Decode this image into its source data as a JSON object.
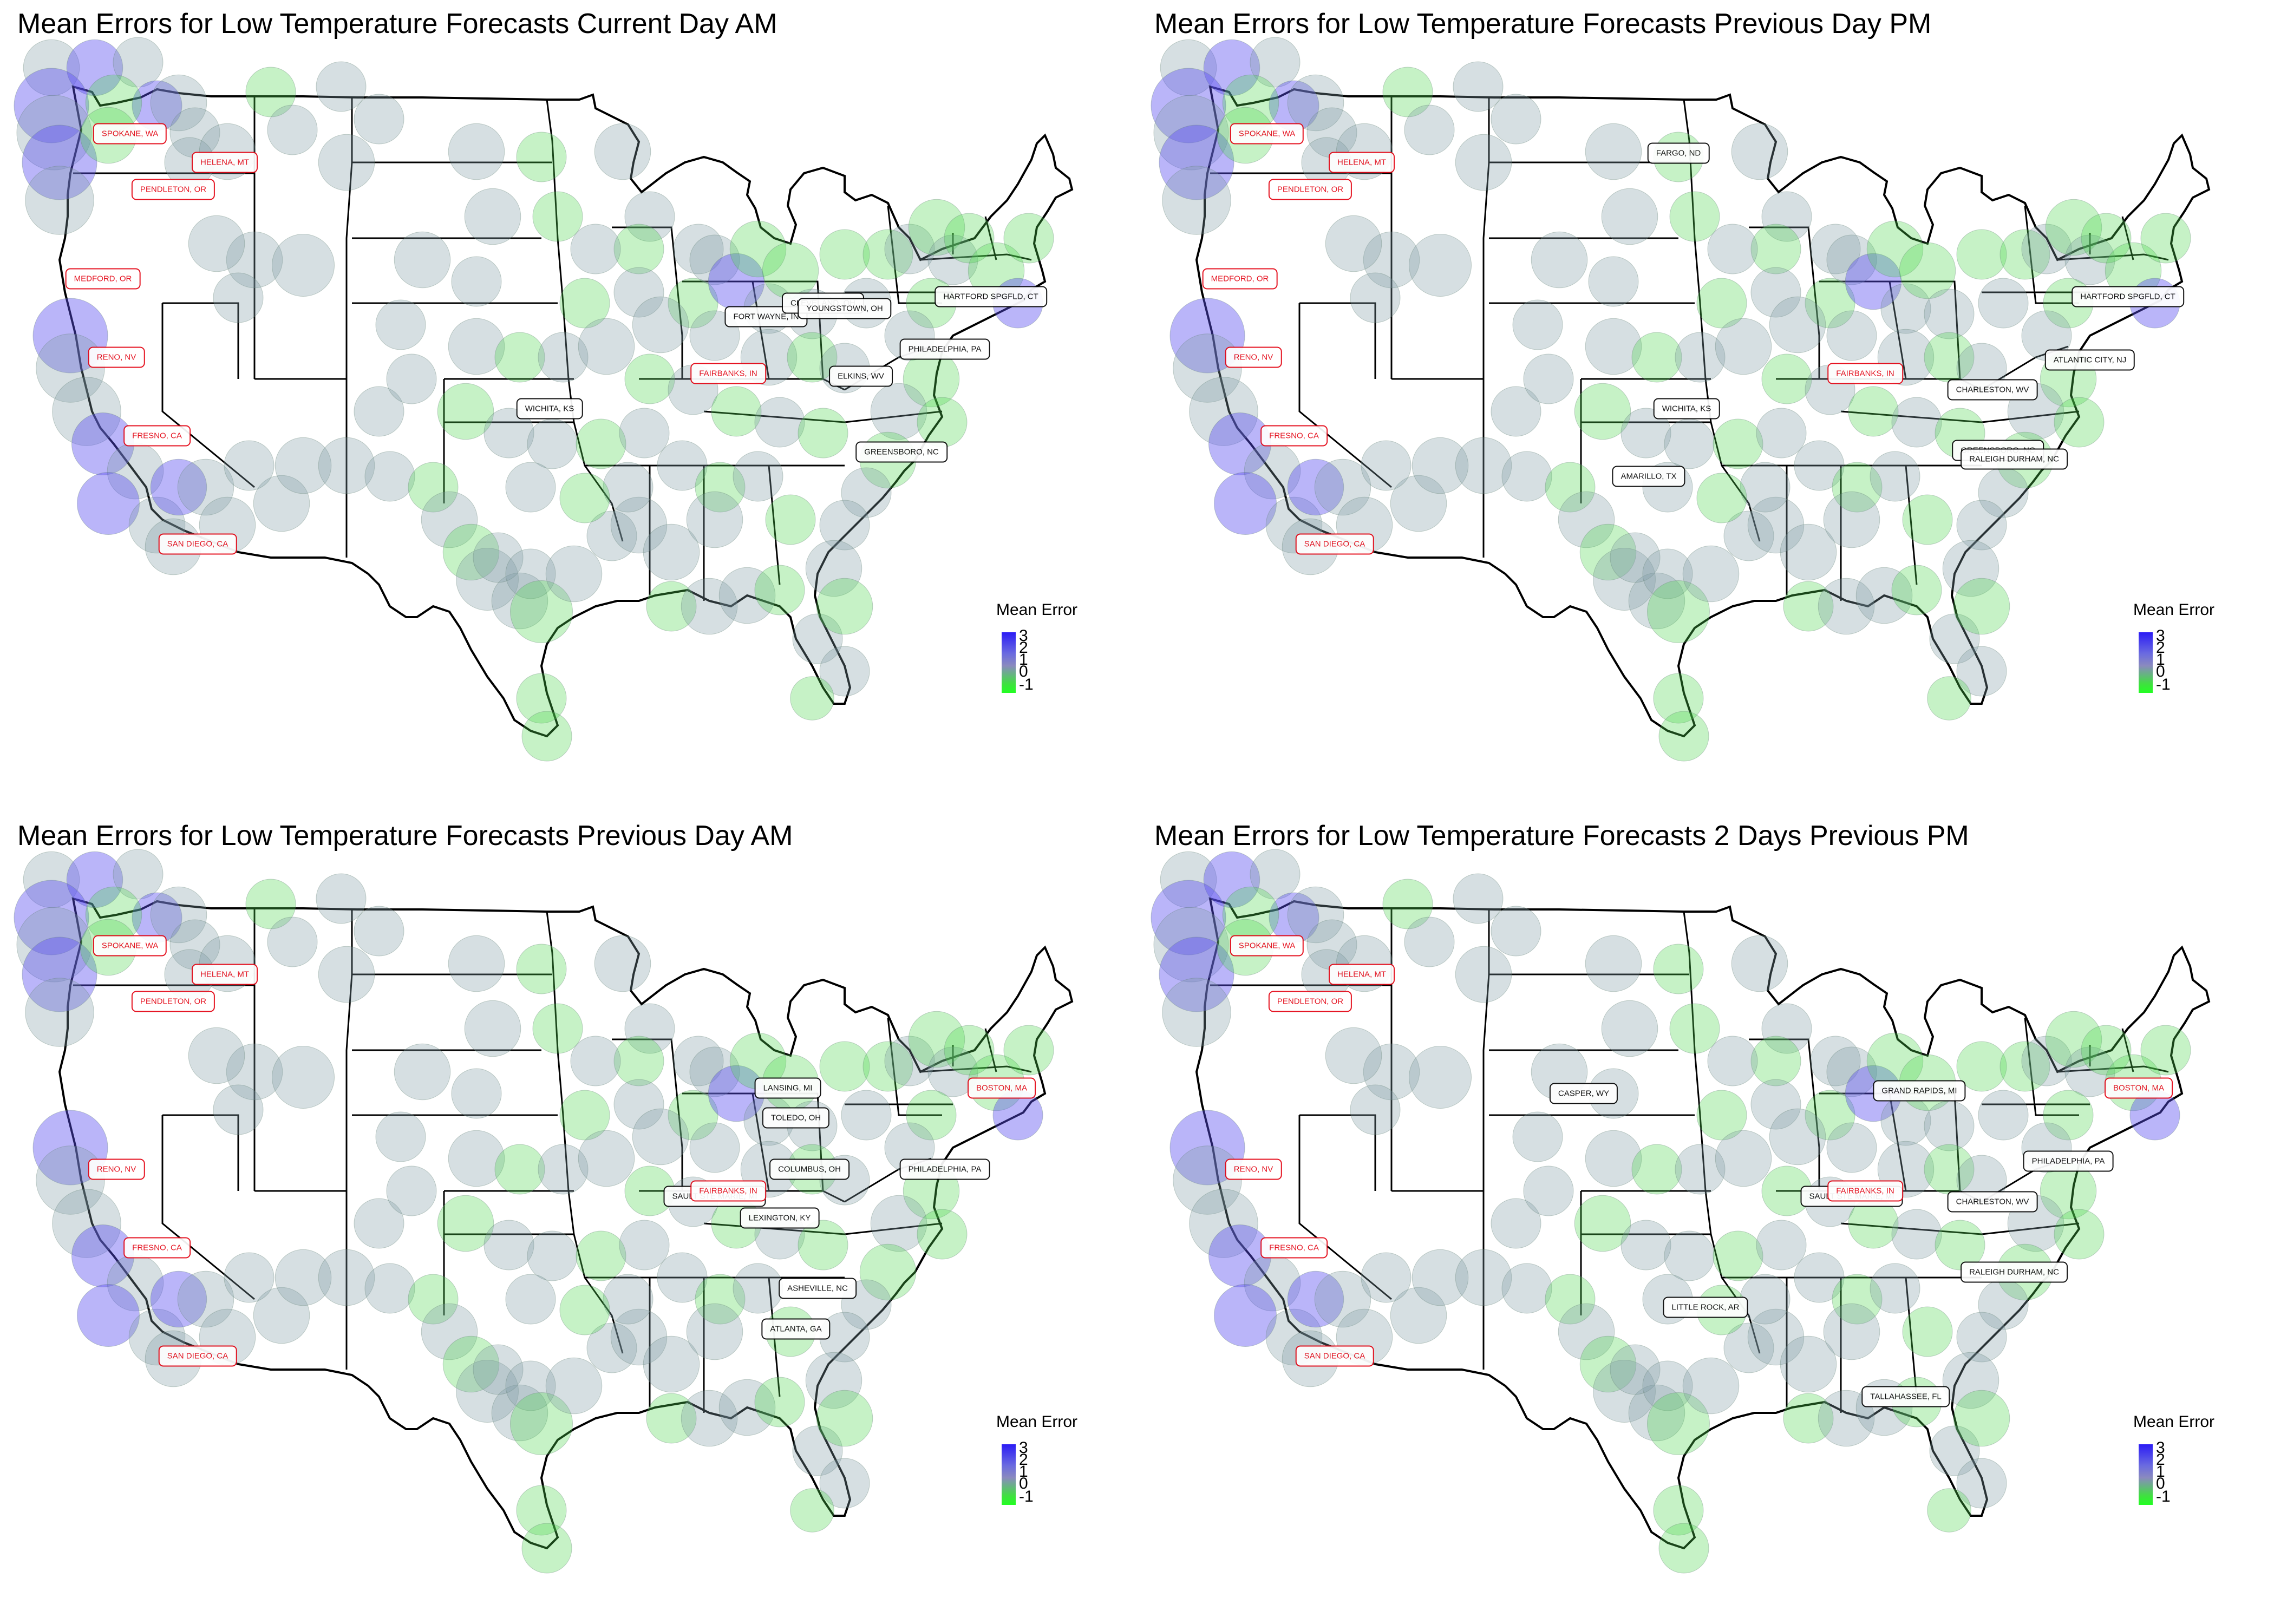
{
  "legend": {
    "title": "Mean Error",
    "ticks": [
      "3",
      "2",
      "1",
      "0",
      "-1"
    ]
  },
  "colors": {
    "high_error": "#2b1cf5",
    "mid_error": "#8a8abf",
    "low_error": "#22ff22"
  },
  "panels": [
    {
      "title": "Mean Errors for Low Temperature Forecasts Current Day AM",
      "labels": [
        {
          "text": "SPOKANE, WA",
          "color": "red"
        },
        {
          "text": "HELENA, MT",
          "color": "red"
        },
        {
          "text": "PENDLETON, OR",
          "color": "red"
        },
        {
          "text": "MEDFORD, OR",
          "color": "red"
        },
        {
          "text": "RENO, NV",
          "color": "red"
        },
        {
          "text": "FRESNO, CA",
          "color": "red"
        },
        {
          "text": "SAN DIEGO, CA",
          "color": "red"
        },
        {
          "text": "WICHITA, KS",
          "color": "black"
        },
        {
          "text": "FAIRBANKS, IN",
          "color": "red"
        },
        {
          "text": "FORT WAYNE, IN",
          "color": "black"
        },
        {
          "text": "CLEVELAND, OH",
          "color": "black"
        },
        {
          "text": "YOUNGSTOWN, OH",
          "color": "black"
        },
        {
          "text": "ELKINS, WV",
          "color": "black"
        },
        {
          "text": "PHILADELPHIA, PA",
          "color": "black"
        },
        {
          "text": "HARTFORD SPGFLD, CT",
          "color": "black"
        },
        {
          "text": "GREENSBORO, NC",
          "color": "black"
        }
      ]
    },
    {
      "title": "Mean Errors for Low Temperature Forecasts Previous Day PM",
      "labels": [
        {
          "text": "SPOKANE, WA",
          "color": "red"
        },
        {
          "text": "HELENA, MT",
          "color": "red"
        },
        {
          "text": "PENDLETON, OR",
          "color": "red"
        },
        {
          "text": "MEDFORD, OR",
          "color": "red"
        },
        {
          "text": "RENO, NV",
          "color": "red"
        },
        {
          "text": "FRESNO, CA",
          "color": "red"
        },
        {
          "text": "SAN DIEGO, CA",
          "color": "red"
        },
        {
          "text": "FARGO, ND",
          "color": "black"
        },
        {
          "text": "WICHITA, KS",
          "color": "black"
        },
        {
          "text": "AMARILLO, TX",
          "color": "black"
        },
        {
          "text": "FAIRBANKS, IN",
          "color": "red"
        },
        {
          "text": "CHARLESTON, WV",
          "color": "black"
        },
        {
          "text": "GREENSBORO, NC",
          "color": "black"
        },
        {
          "text": "RALEIGH DURHAM, NC",
          "color": "black"
        },
        {
          "text": "ATLANTIC CITY, NJ",
          "color": "black"
        },
        {
          "text": "HARTFORD SPGFLD, CT",
          "color": "black"
        }
      ]
    },
    {
      "title": "Mean Errors for Low Temperature Forecasts Previous Day AM",
      "labels": [
        {
          "text": "SPOKANE, WA",
          "color": "red"
        },
        {
          "text": "HELENA, MT",
          "color": "red"
        },
        {
          "text": "PENDLETON, OR",
          "color": "red"
        },
        {
          "text": "RENO, NV",
          "color": "red"
        },
        {
          "text": "FRESNO, CA",
          "color": "red"
        },
        {
          "text": "SAN DIEGO, CA",
          "color": "red"
        },
        {
          "text": "LANSING, MI",
          "color": "black"
        },
        {
          "text": "TOLEDO, OH",
          "color": "black"
        },
        {
          "text": "COLUMBUS, OH",
          "color": "black"
        },
        {
          "text": "SAULT STE MARIE, MI",
          "color": "black"
        },
        {
          "text": "FAIRBANKS, IN",
          "color": "red"
        },
        {
          "text": "LEXINGTON, KY",
          "color": "black"
        },
        {
          "text": "PHILADELPHIA, PA",
          "color": "black"
        },
        {
          "text": "BOSTON, MA",
          "color": "red"
        },
        {
          "text": "ASHEVILLE, NC",
          "color": "black"
        },
        {
          "text": "ATLANTA, GA",
          "color": "black"
        }
      ]
    },
    {
      "title": "Mean Errors for Low Temperature Forecasts 2 Days Previous PM",
      "labels": [
        {
          "text": "SPOKANE, WA",
          "color": "red"
        },
        {
          "text": "HELENA, MT",
          "color": "red"
        },
        {
          "text": "PENDLETON, OR",
          "color": "red"
        },
        {
          "text": "RENO, NV",
          "color": "red"
        },
        {
          "text": "FRESNO, CA",
          "color": "red"
        },
        {
          "text": "SAN DIEGO, CA",
          "color": "red"
        },
        {
          "text": "CASPER, WY",
          "color": "black"
        },
        {
          "text": "GRAND RAPIDS, MI",
          "color": "black"
        },
        {
          "text": "SAULT STE MARIE, MI",
          "color": "black"
        },
        {
          "text": "FAIRBANKS, IN",
          "color": "red"
        },
        {
          "text": "CHARLESTON, WV",
          "color": "black"
        },
        {
          "text": "PHILADELPHIA, PA",
          "color": "black"
        },
        {
          "text": "BOSTON, MA",
          "color": "red"
        },
        {
          "text": "RALEIGH DURHAM, NC",
          "color": "black"
        },
        {
          "text": "LITTLE ROCK, AR",
          "color": "black"
        },
        {
          "text": "TALLAHASSEE, FL",
          "color": "black"
        }
      ]
    }
  ]
}
